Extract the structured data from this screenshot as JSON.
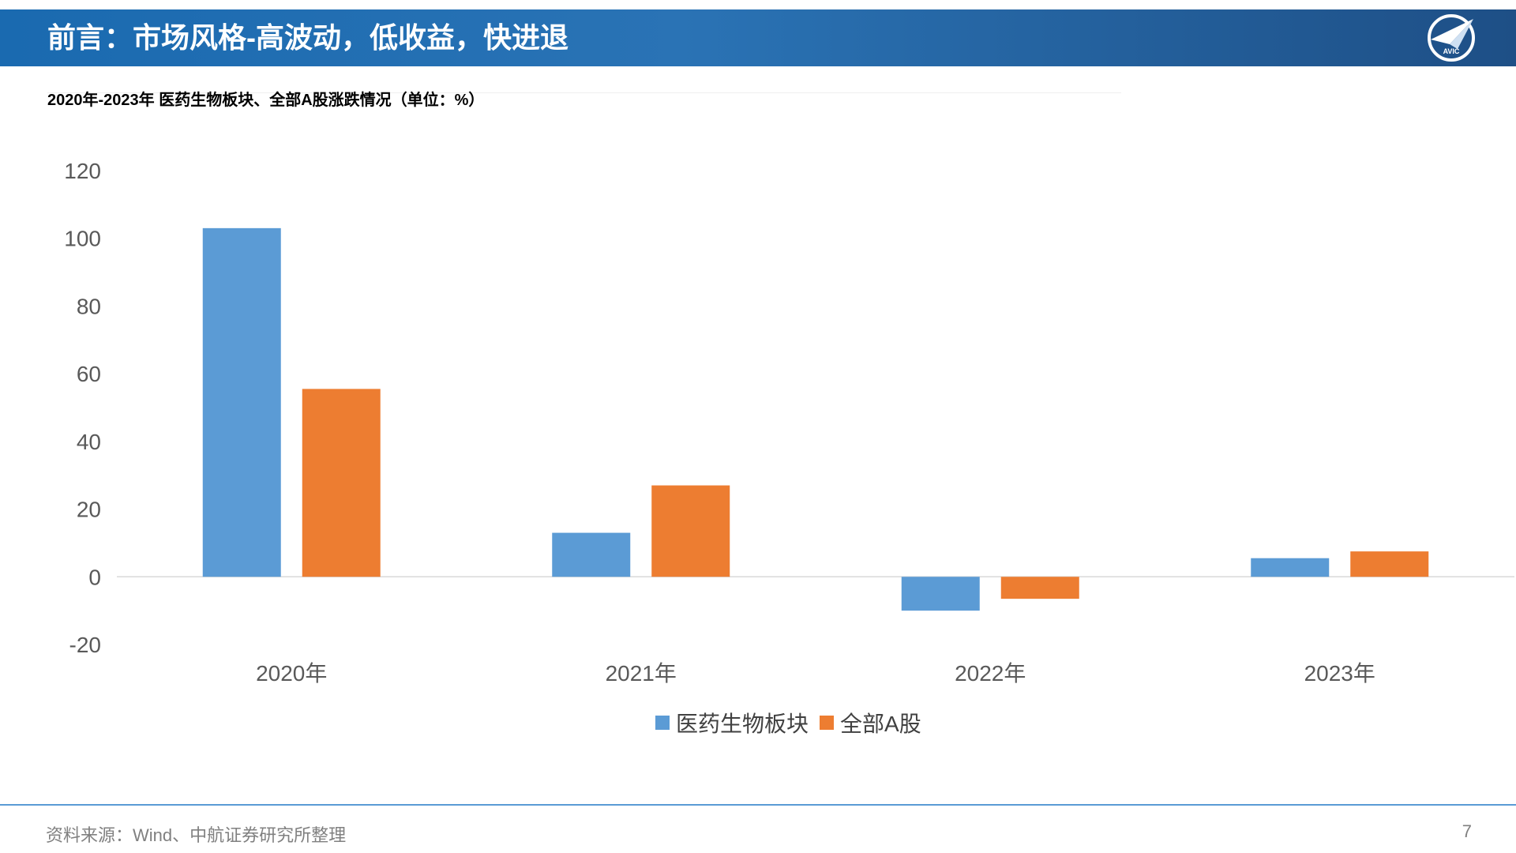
{
  "header": {
    "title": "前言：市场风格-高波动，低收益，快进退",
    "logo_text": "AVIC"
  },
  "chart_title": "2020年-2023年 医药生物板块、全部A股涨跌情况（单位：%）",
  "colors": {
    "header_blue": "#1f6bb0",
    "series_pharma": "#5b9bd5",
    "series_all_a": "#ed7d31",
    "footer_rule": "#5a9bd5"
  },
  "chart_data": {
    "type": "bar",
    "title": "2020年-2023年 医药生物板块、全部A股涨跌情况（单位：%）",
    "categories": [
      "2020年",
      "2021年",
      "2022年",
      "2023年"
    ],
    "series": [
      {
        "name": "医药生物板块",
        "values": [
          103,
          13,
          -10,
          5.5
        ]
      },
      {
        "name": "全部A股",
        "values": [
          55.5,
          27,
          -6.5,
          7.5
        ]
      }
    ],
    "ylim": [
      -20,
      120
    ],
    "yticks": [
      -20,
      0,
      20,
      40,
      60,
      80,
      100,
      120
    ],
    "ytick_labels": [
      "-20",
      "0",
      "20",
      "40",
      "60",
      "80",
      "100",
      "120"
    ],
    "grid": false,
    "legend_position": "bottom-center"
  },
  "footer": {
    "source": "资料来源：Wind、中航证券研究所整理",
    "page_number": "7"
  }
}
